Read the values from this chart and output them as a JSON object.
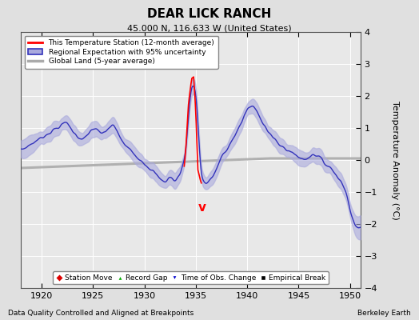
{
  "title": "DEAR LICK RANCH",
  "subtitle": "45.000 N, 116.633 W (United States)",
  "xlabel_left": "Data Quality Controlled and Aligned at Breakpoints",
  "xlabel_right": "Berkeley Earth",
  "ylabel": "Temperature Anomaly (°C)",
  "xlim": [
    1918,
    1951
  ],
  "ylim": [
    -4,
    4
  ],
  "xticks": [
    1920,
    1925,
    1930,
    1935,
    1940,
    1945,
    1950
  ],
  "yticks": [
    -4,
    -3,
    -2,
    -1,
    0,
    1,
    2,
    3,
    4
  ],
  "bg_color": "#e0e0e0",
  "plot_bg_color": "#e8e8e8",
  "grid_color": "#ffffff",
  "station_color": "#ff0000",
  "regional_color": "#3333bb",
  "regional_fill_color": "#aaaadd",
  "global_color": "#aaaaaa",
  "legend_labels": [
    "This Temperature Station (12-month average)",
    "Regional Expectation with 95% uncertainty",
    "Global Land (5-year average)"
  ],
  "marker_legend": [
    {
      "marker": "D",
      "color": "#dd0000",
      "label": "Station Move"
    },
    {
      "marker": "^",
      "color": "#00aa00",
      "label": "Record Gap"
    },
    {
      "marker": "v",
      "color": "#0000cc",
      "label": "Time of Obs. Change"
    },
    {
      "marker": "s",
      "color": "#000000",
      "label": "Empirical Break"
    }
  ],
  "obs_change_x": 1935.6,
  "obs_change_y": -1.3
}
